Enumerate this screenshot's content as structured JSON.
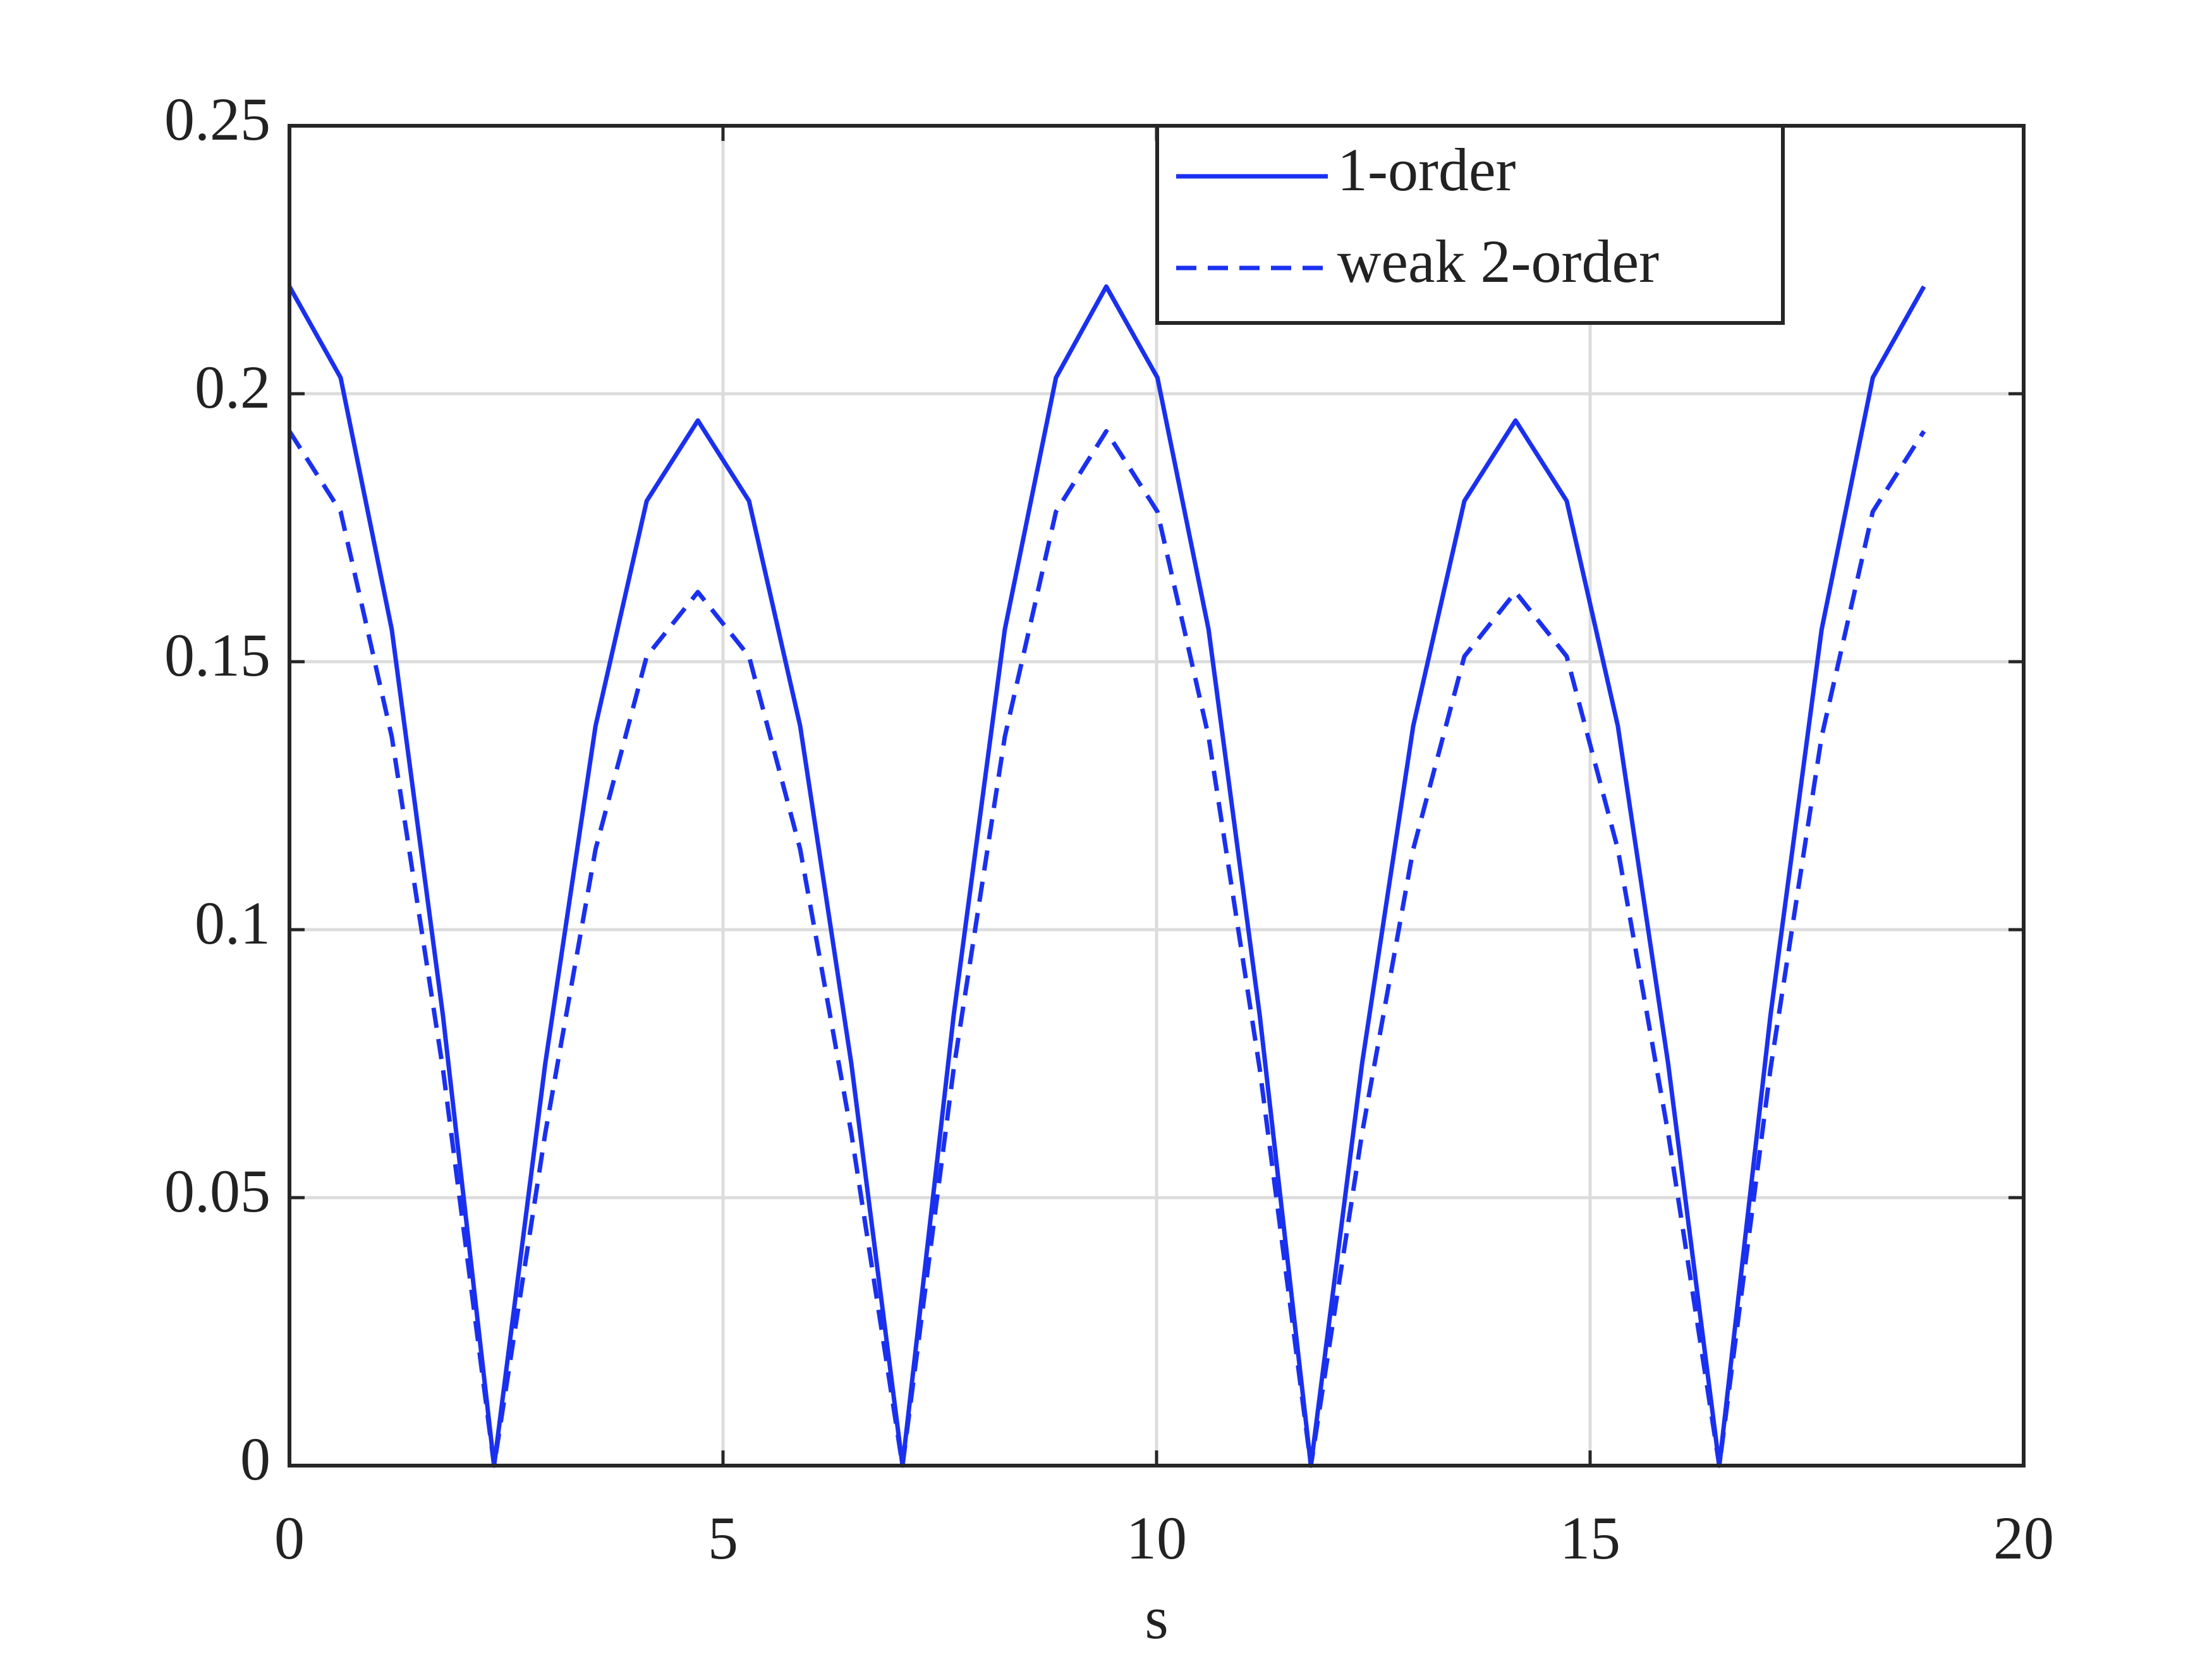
{
  "chart_data": {
    "type": "line",
    "x_label": "s",
    "x": [
      0,
      0.59,
      1.18,
      1.77,
      2.36,
      2.95,
      3.53,
      4.12,
      4.71,
      5.3,
      5.89,
      6.48,
      7.07,
      7.66,
      8.25,
      8.84,
      9.42,
      10.01,
      10.6,
      11.19,
      11.78,
      12.37,
      12.96,
      13.55,
      14.14,
      14.73,
      15.32,
      15.9,
      16.49,
      17.08,
      17.67,
      18.26,
      18.85
    ],
    "series": [
      {
        "name": "1-order",
        "color": "#1a30f0",
        "dash": "solid",
        "values": [
          0.22,
          0.203,
          0.156,
          0.084,
          0,
          0.075,
          0.138,
          0.18,
          0.195,
          0.18,
          0.138,
          0.075,
          0,
          0.084,
          0.156,
          0.203,
          0.22,
          0.203,
          0.156,
          0.084,
          0,
          0.075,
          0.138,
          0.18,
          0.195,
          0.18,
          0.138,
          0.075,
          0,
          0.084,
          0.156,
          0.203,
          0.22
        ]
      },
      {
        "name": "weak 2-order",
        "color": "#1a30f0",
        "dash": "dashed",
        "values": [
          0.193,
          0.178,
          0.136,
          0.074,
          0,
          0.062,
          0.115,
          0.151,
          0.163,
          0.151,
          0.115,
          0.062,
          0,
          0.074,
          0.136,
          0.178,
          0.193,
          0.178,
          0.136,
          0.074,
          0,
          0.062,
          0.115,
          0.151,
          0.163,
          0.151,
          0.115,
          0.062,
          0,
          0.074,
          0.136,
          0.178,
          0.193
        ]
      }
    ],
    "xlim": [
      0,
      20
    ],
    "xticks": [
      0,
      5,
      10,
      15,
      20
    ],
    "ylim": [
      0,
      0.25
    ],
    "yticks": [
      0,
      0.05,
      0.1,
      0.15,
      0.2,
      0.25
    ],
    "grid": true,
    "legend": "top-right"
  }
}
